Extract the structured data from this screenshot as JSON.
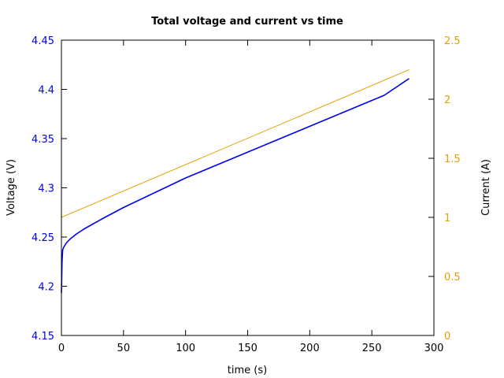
{
  "chart_data": {
    "type": "line",
    "title": "Total voltage and current vs time",
    "xlabel": "time (s)",
    "ylabel_left": "Voltage (V)",
    "ylabel_right": "Current (A)",
    "xlim": [
      0,
      300
    ],
    "ylim_left": [
      4.15,
      4.45
    ],
    "ylim_right": [
      0,
      2.5
    ],
    "x_ticks": [
      "0",
      "50",
      "100",
      "150",
      "200",
      "250",
      "300"
    ],
    "y_left_ticks": [
      "4.15",
      "4.2",
      "4.25",
      "4.3",
      "4.35",
      "4.4",
      "4.45"
    ],
    "y_right_ticks": [
      "0",
      "0.5",
      "1",
      "1.5",
      "2",
      "2.5"
    ],
    "grid": false,
    "colors": {
      "voltage": "#0000ee",
      "current": "#e6a100",
      "left_axis_text": "#0000ee",
      "right_axis_text": "#e6a100"
    },
    "series": [
      {
        "axis": "left",
        "x": [
          0,
          0.5,
          1,
          2,
          4,
          7,
          12,
          18,
          25,
          35,
          50,
          75,
          100,
          140,
          180,
          220,
          260,
          280
        ],
        "values": [
          4.193,
          4.225,
          4.237,
          4.24,
          4.244,
          4.248,
          4.253,
          4.258,
          4.263,
          4.27,
          4.28,
          4.295,
          4.31,
          4.331,
          4.352,
          4.373,
          4.394,
          4.411
        ]
      },
      {
        "axis": "right",
        "x": [
          0,
          280
        ],
        "values": [
          1.0,
          2.25
        ]
      }
    ]
  }
}
